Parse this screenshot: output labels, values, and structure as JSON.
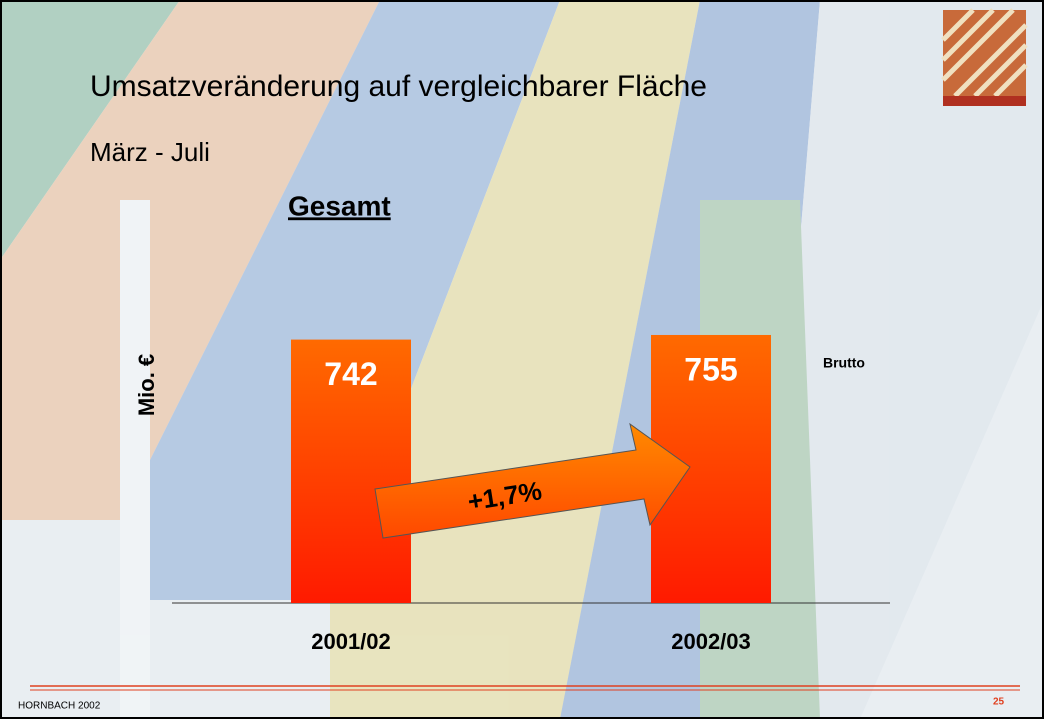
{
  "chart_data": {
    "type": "bar",
    "title": "Umsatzveränderung auf vergleichbarer Fläche",
    "subtitle": "März - Juli",
    "heading": "Gesamt",
    "ylabel": "Mio. €",
    "categories": [
      "2001/02",
      "2002/03"
    ],
    "series": [
      {
        "name": "Brutto",
        "color": "#ff4a00",
        "values": [
          742,
          755
        ]
      }
    ],
    "ylim": [
      0,
      800
    ],
    "annotation": "+1,7%"
  },
  "footer": {
    "left": "HORNBACH 2002",
    "page": "25"
  }
}
